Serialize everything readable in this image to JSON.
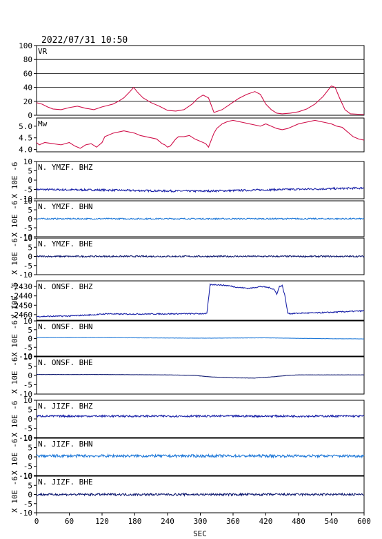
{
  "header": {
    "timestamp": "2022/07/31  10:50"
  },
  "chart_data": {
    "type": "line",
    "xlabel": "SEC",
    "xlim": [
      0,
      600
    ],
    "xticks": [
      "0",
      "60",
      "120",
      "180",
      "240",
      "300",
      "360",
      "420",
      "480",
      "540",
      "600"
    ],
    "panels": [
      {
        "name": "VR",
        "type": "line",
        "color": "#d0104a",
        "ylim": [
          0,
          100
        ],
        "yticks": [
          "0",
          "20",
          "40",
          "60",
          "80",
          "100"
        ],
        "grid": true,
        "x": [
          0,
          10,
          20,
          30,
          45,
          60,
          75,
          90,
          105,
          120,
          130,
          140,
          150,
          160,
          170,
          178,
          185,
          195,
          210,
          225,
          240,
          255,
          270,
          285,
          295,
          305,
          315,
          325,
          340,
          355,
          370,
          385,
          400,
          410,
          420,
          430,
          440,
          450,
          465,
          480,
          495,
          510,
          525,
          535,
          540,
          547,
          555,
          565,
          575,
          600
        ],
        "y": [
          18,
          16,
          12,
          9,
          8,
          11,
          13,
          10,
          8,
          12,
          14,
          16,
          20,
          25,
          33,
          40,
          33,
          25,
          18,
          13,
          7,
          6,
          8,
          16,
          24,
          29,
          25,
          4,
          8,
          16,
          24,
          30,
          34,
          30,
          16,
          8,
          3,
          2,
          3,
          5,
          9,
          16,
          27,
          37,
          42,
          40,
          25,
          8,
          2,
          1
        ]
      },
      {
        "name": "Mw",
        "type": "line",
        "color": "#d0104a",
        "ylim": [
          3.9,
          5.35
        ],
        "yticks": [
          "4.0",
          "4.5",
          "5.0"
        ],
        "grid": false,
        "x": [
          0,
          5,
          15,
          30,
          45,
          60,
          70,
          80,
          90,
          100,
          110,
          120,
          125,
          130,
          140,
          150,
          160,
          170,
          180,
          190,
          200,
          210,
          220,
          230,
          235,
          240,
          245,
          250,
          255,
          260,
          270,
          280,
          290,
          300,
          310,
          315,
          320,
          325,
          330,
          340,
          350,
          360,
          370,
          380,
          390,
          400,
          410,
          420,
          430,
          440,
          450,
          460,
          470,
          480,
          490,
          500,
          510,
          520,
          530,
          540,
          550,
          560,
          570,
          580,
          590,
          600
        ],
        "y": [
          4.3,
          4.2,
          4.3,
          4.25,
          4.2,
          4.3,
          4.15,
          4.05,
          4.2,
          4.25,
          4.1,
          4.3,
          4.55,
          4.6,
          4.7,
          4.75,
          4.8,
          4.75,
          4.7,
          4.6,
          4.55,
          4.5,
          4.45,
          4.25,
          4.2,
          4.1,
          4.15,
          4.3,
          4.45,
          4.55,
          4.55,
          4.6,
          4.45,
          4.35,
          4.25,
          4.1,
          4.4,
          4.7,
          4.9,
          5.1,
          5.2,
          5.25,
          5.2,
          5.15,
          5.1,
          5.05,
          5.0,
          5.1,
          5.0,
          4.9,
          4.85,
          4.9,
          5.0,
          5.1,
          5.15,
          5.2,
          5.25,
          5.2,
          5.15,
          5.1,
          5.0,
          4.95,
          4.75,
          4.55,
          4.45,
          4.4
        ]
      },
      {
        "name": "N. YMZF. BHZ",
        "type": "line",
        "color": "#1a22a8",
        "ylim": [
          -10,
          10
        ],
        "yticks": [
          "-10",
          "-5",
          "0",
          "5",
          "10"
        ],
        "ylabel": "X 10E -6",
        "x": [
          0,
          60,
          120,
          180,
          240,
          300,
          360,
          420,
          480,
          540,
          600
        ],
        "y": [
          -5,
          -5.2,
          -5.3,
          -5.6,
          -5.8,
          -5.9,
          -5.6,
          -5.2,
          -4.9,
          -4.6,
          -4.2
        ],
        "noise": 0.5
      },
      {
        "name": "N. YMZF. BHN",
        "type": "line",
        "color": "#1e78d8",
        "ylim": [
          -10,
          10
        ],
        "yticks": [
          "-10",
          "-5",
          "0",
          "5",
          "10"
        ],
        "ylabel": "X 10E -6",
        "x": [
          0,
          600
        ],
        "y": [
          0,
          0
        ],
        "noise": 0.35
      },
      {
        "name": "N. YMZF. BHE",
        "type": "line",
        "color": "#101a70",
        "ylim": [
          -10,
          10
        ],
        "yticks": [
          "-10",
          "-5",
          "0",
          "5",
          "10"
        ],
        "ylabel": "X 10E -6",
        "x": [
          0,
          600
        ],
        "y": [
          0,
          0
        ],
        "noise": 0.4
      },
      {
        "name": "N. ONSF. BHZ",
        "type": "line",
        "color": "#1a22a8",
        "ylim": [
          -2466,
          -2424
        ],
        "yticks": [
          "-2460",
          "-2450",
          "-2440",
          "-2430"
        ],
        "ylabel": "X 10E -6",
        "x": [
          0,
          60,
          110,
          130,
          150,
          300,
          312,
          318,
          330,
          350,
          370,
          390,
          410,
          425,
          435,
          440,
          445,
          450,
          455,
          460,
          465,
          480,
          520,
          560,
          600
        ],
        "y": [
          -2462,
          -2461.5,
          -2460,
          -2459,
          -2459.5,
          -2459,
          -2459,
          -2428,
          -2428,
          -2429,
          -2431,
          -2432,
          -2430,
          -2431,
          -2433,
          -2438,
          -2430,
          -2429,
          -2440,
          -2458,
          -2459,
          -2458.5,
          -2458,
          -2457,
          -2456
        ],
        "noise": 0.6
      },
      {
        "name": "N. ONSF. BHN",
        "type": "line",
        "color": "#1e78d8",
        "ylim": [
          -10,
          10
        ],
        "yticks": [
          "-10",
          "-5",
          "0",
          "5",
          "10"
        ],
        "ylabel": "X 10E -6",
        "x": [
          0,
          120,
          240,
          300,
          360,
          420,
          480,
          540,
          600
        ],
        "y": [
          0.5,
          0.5,
          0.3,
          0.2,
          0.3,
          0.4,
          0.1,
          -0.1,
          -0.2
        ],
        "noise": 0.05
      },
      {
        "name": "N. ONSF. BHE",
        "type": "line",
        "color": "#101a70",
        "ylim": [
          -10,
          10
        ],
        "yticks": [
          "-10",
          "-5",
          "0",
          "5",
          "10"
        ],
        "ylabel": "X 10E -6",
        "x": [
          0,
          120,
          240,
          290,
          320,
          360,
          400,
          430,
          460,
          480,
          600
        ],
        "y": [
          0.5,
          0.5,
          0.3,
          0,
          -0.8,
          -1.3,
          -1.4,
          -0.8,
          0,
          0.3,
          0.3
        ],
        "noise": 0.05
      },
      {
        "name": "N. JIZF. BHZ",
        "type": "line",
        "color": "#1a22a8",
        "ylim": [
          -10,
          10
        ],
        "yticks": [
          "-10",
          "-5",
          "0",
          "5",
          "10"
        ],
        "ylabel": "X 10E -6",
        "x": [
          0,
          600
        ],
        "y": [
          1.5,
          1.5
        ],
        "noise": 0.5
      },
      {
        "name": "N. JIZF. BHN",
        "type": "line",
        "color": "#1e78d8",
        "ylim": [
          -10,
          10
        ],
        "yticks": [
          "-10",
          "-5",
          "0",
          "5",
          "10"
        ],
        "ylabel": "X 10E -6",
        "x": [
          0,
          600
        ],
        "y": [
          0.5,
          0.5
        ],
        "noise": 0.7
      },
      {
        "name": "N. JIZF. BHE",
        "type": "line",
        "color": "#101a70",
        "ylim": [
          -10,
          10
        ],
        "yticks": [
          "-10",
          "-5",
          "0",
          "5",
          "10"
        ],
        "ylabel": "X 10E -6",
        "x": [
          0,
          600
        ],
        "y": [
          0,
          0
        ],
        "noise": 0.6
      }
    ]
  }
}
